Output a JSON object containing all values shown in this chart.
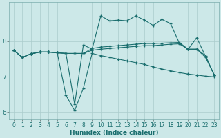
{
  "xlabel": "Humidex (Indice chaleur)",
  "background_color": "#cce8e8",
  "grid_color": "#aacccc",
  "line_color": "#1a6e6e",
  "x_range": [
    -0.5,
    23.5
  ],
  "y_range": [
    5.8,
    9.1
  ],
  "yticks": [
    6,
    7,
    8
  ],
  "xticks": [
    0,
    1,
    2,
    3,
    4,
    5,
    6,
    7,
    8,
    9,
    10,
    11,
    12,
    13,
    14,
    15,
    16,
    17,
    18,
    19,
    20,
    21,
    22,
    23
  ],
  "lines": [
    {
      "x": [
        0,
        1,
        2,
        3,
        4,
        5,
        6,
        7,
        8,
        9,
        10,
        11,
        12,
        13,
        14,
        15,
        16,
        17,
        18,
        19,
        20,
        21,
        22,
        23
      ],
      "y": [
        7.75,
        7.55,
        7.65,
        7.7,
        7.7,
        7.68,
        7.66,
        6.22,
        7.9,
        7.78,
        8.72,
        8.58,
        8.6,
        8.58,
        8.72,
        8.6,
        8.45,
        8.62,
        8.5,
        7.95,
        7.78,
        8.1,
        7.58,
        7.05
      ]
    },
    {
      "x": [
        0,
        1,
        2,
        3,
        4,
        5,
        6,
        7,
        8,
        9,
        10,
        11,
        12,
        13,
        14,
        15,
        16,
        17,
        18,
        19,
        20,
        21,
        22,
        23
      ],
      "y": [
        7.75,
        7.55,
        7.65,
        7.7,
        7.7,
        7.68,
        7.66,
        7.66,
        7.66,
        7.8,
        7.84,
        7.86,
        7.88,
        7.9,
        7.92,
        7.94,
        7.94,
        7.95,
        7.96,
        7.97,
        7.78,
        7.78,
        7.6,
        7.05
      ]
    },
    {
      "x": [
        0,
        1,
        2,
        3,
        4,
        5,
        6,
        7,
        8,
        9,
        10,
        11,
        12,
        13,
        14,
        15,
        16,
        17,
        18,
        19,
        20,
        21,
        22,
        23
      ],
      "y": [
        7.75,
        7.55,
        7.65,
        7.7,
        7.7,
        7.68,
        7.66,
        7.66,
        7.66,
        7.75,
        7.78,
        7.8,
        7.82,
        7.84,
        7.86,
        7.88,
        7.88,
        7.9,
        7.92,
        7.93,
        7.78,
        7.78,
        7.55,
        7.05
      ]
    },
    {
      "x": [
        0,
        1,
        2,
        3,
        4,
        5,
        6,
        7,
        8,
        9,
        10,
        11,
        12,
        13,
        14,
        15,
        16,
        17,
        18,
        19,
        20,
        21,
        22,
        23
      ],
      "y": [
        7.75,
        7.55,
        7.65,
        7.7,
        7.7,
        7.68,
        6.48,
        6.05,
        6.68,
        7.66,
        7.6,
        7.55,
        7.5,
        7.45,
        7.4,
        7.35,
        7.28,
        7.22,
        7.17,
        7.12,
        7.08,
        7.05,
        7.02,
        7.0
      ]
    }
  ]
}
